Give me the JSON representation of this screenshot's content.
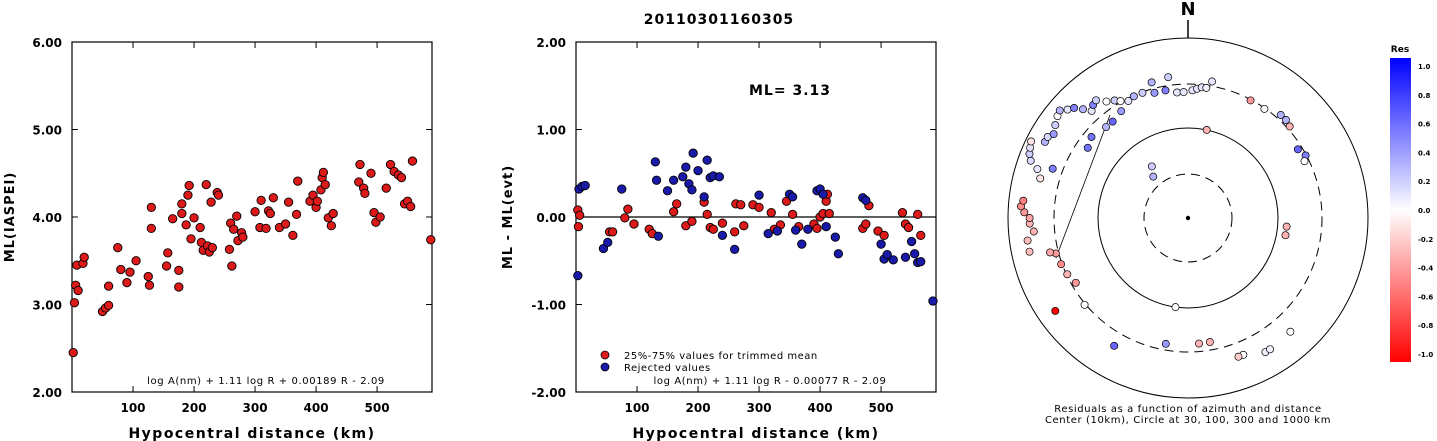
{
  "event_id": "20110301160305",
  "chart_data": [
    {
      "type": "scatter",
      "xlabel": "Hypocentral distance (km)",
      "ylabel": "ML(IASPEI)",
      "xlim": [
        0,
        590
      ],
      "ylim": [
        2.0,
        6.0
      ],
      "x_ticks": [
        "100",
        "200",
        "300",
        "400",
        "500"
      ],
      "y_ticks": [
        "2.00",
        "3.00",
        "4.00",
        "5.00",
        "6.00"
      ],
      "formula": "log A(nm) + 1.11 log R + 0.00189 R - 2.09",
      "marker_color": "#dd1a1a",
      "points": [
        [
          2,
          2.45
        ],
        [
          4,
          3.02
        ],
        [
          6,
          3.22
        ],
        [
          8,
          3.45
        ],
        [
          10,
          3.16
        ],
        [
          18,
          3.47
        ],
        [
          20,
          3.54
        ],
        [
          50,
          2.92
        ],
        [
          55,
          2.96
        ],
        [
          60,
          2.99
        ],
        [
          60,
          3.21
        ],
        [
          75,
          3.65
        ],
        [
          80,
          3.4
        ],
        [
          90,
          3.25
        ],
        [
          95,
          3.37
        ],
        [
          105,
          3.5
        ],
        [
          125,
          3.32
        ],
        [
          127,
          3.22
        ],
        [
          130,
          3.87
        ],
        [
          130,
          4.11
        ],
        [
          155,
          3.44
        ],
        [
          157,
          3.59
        ],
        [
          165,
          3.98
        ],
        [
          175,
          3.2
        ],
        [
          175,
          3.39
        ],
        [
          180,
          4.04
        ],
        [
          180,
          4.15
        ],
        [
          187,
          3.91
        ],
        [
          190,
          4.25
        ],
        [
          192,
          4.36
        ],
        [
          195,
          3.75
        ],
        [
          200,
          3.99
        ],
        [
          210,
          3.88
        ],
        [
          212,
          3.71
        ],
        [
          215,
          3.62
        ],
        [
          220,
          4.37
        ],
        [
          222,
          3.67
        ],
        [
          225,
          3.6
        ],
        [
          228,
          4.17
        ],
        [
          230,
          3.65
        ],
        [
          238,
          4.28
        ],
        [
          240,
          4.25
        ],
        [
          258,
          3.63
        ],
        [
          260,
          3.93
        ],
        [
          262,
          3.44
        ],
        [
          265,
          3.86
        ],
        [
          270,
          4.01
        ],
        [
          272,
          3.73
        ],
        [
          278,
          3.82
        ],
        [
          280,
          3.77
        ],
        [
          300,
          4.06
        ],
        [
          308,
          3.88
        ],
        [
          310,
          4.19
        ],
        [
          318,
          3.87
        ],
        [
          322,
          4.07
        ],
        [
          325,
          4.04
        ],
        [
          330,
          4.22
        ],
        [
          340,
          3.88
        ],
        [
          350,
          3.92
        ],
        [
          355,
          4.17
        ],
        [
          362,
          3.79
        ],
        [
          368,
          4.03
        ],
        [
          370,
          4.41
        ],
        [
          390,
          4.18
        ],
        [
          395,
          4.25
        ],
        [
          400,
          4.11
        ],
        [
          402,
          4.18
        ],
        [
          408,
          4.31
        ],
        [
          410,
          4.45
        ],
        [
          412,
          4.51
        ],
        [
          415,
          4.37
        ],
        [
          420,
          3.99
        ],
        [
          425,
          3.9
        ],
        [
          428,
          4.04
        ],
        [
          470,
          4.4
        ],
        [
          472,
          4.6
        ],
        [
          478,
          4.33
        ],
        [
          480,
          4.27
        ],
        [
          490,
          4.5
        ],
        [
          495,
          4.05
        ],
        [
          498,
          3.94
        ],
        [
          505,
          4.0
        ],
        [
          515,
          4.33
        ],
        [
          522,
          4.6
        ],
        [
          528,
          4.52
        ],
        [
          535,
          4.48
        ],
        [
          540,
          4.45
        ],
        [
          545,
          4.15
        ],
        [
          550,
          4.18
        ],
        [
          555,
          4.12
        ],
        [
          558,
          4.64
        ],
        [
          588,
          3.74
        ]
      ]
    },
    {
      "type": "scatter",
      "xlabel": "Hypocentral distance (km)",
      "ylabel": "ML - ML(evt)",
      "xlim": [
        0,
        590
      ],
      "ylim": [
        -2.0,
        2.0
      ],
      "x_ticks": [
        "100",
        "200",
        "300",
        "400",
        "500"
      ],
      "y_ticks": [
        "-2.00",
        "-1.00",
        "0.00",
        "1.00",
        "2.00"
      ],
      "zero_line": true,
      "annotation": "ML= 3.13",
      "formula": "log A(nm) + 1.11 log R - 0.00077 R - 2.09",
      "series": [
        {
          "name": "25%-75% values for trimmed mean",
          "color": "#dd1a1a",
          "points": [
            [
              3,
              0.08
            ],
            [
              4,
              -0.11
            ],
            [
              6,
              0.02
            ],
            [
              55,
              -0.17
            ],
            [
              60,
              -0.17
            ],
            [
              80,
              -0.01
            ],
            [
              85,
              0.09
            ],
            [
              95,
              -0.08
            ],
            [
              120,
              -0.14
            ],
            [
              125,
              -0.19
            ],
            [
              160,
              0.06
            ],
            [
              165,
              0.15
            ],
            [
              180,
              -0.1
            ],
            [
              190,
              -0.05
            ],
            [
              210,
              0.17
            ],
            [
              215,
              0.03
            ],
            [
              220,
              -0.12
            ],
            [
              225,
              -0.14
            ],
            [
              240,
              -0.07
            ],
            [
              260,
              -0.17
            ],
            [
              262,
              0.15
            ],
            [
              270,
              0.14
            ],
            [
              275,
              -0.1
            ],
            [
              290,
              0.14
            ],
            [
              300,
              0.11
            ],
            [
              320,
              0.05
            ],
            [
              325,
              -0.14
            ],
            [
              335,
              -0.09
            ],
            [
              345,
              0.18
            ],
            [
              355,
              0.03
            ],
            [
              365,
              -0.11
            ],
            [
              390,
              -0.08
            ],
            [
              395,
              -0.13
            ],
            [
              400,
              0.0
            ],
            [
              405,
              0.04
            ],
            [
              410,
              0.18
            ],
            [
              412,
              0.26
            ],
            [
              415,
              0.04
            ],
            [
              470,
              -0.13
            ],
            [
              475,
              -0.08
            ],
            [
              480,
              0.13
            ],
            [
              495,
              -0.16
            ],
            [
              505,
              -0.21
            ],
            [
              535,
              0.05
            ],
            [
              540,
              -0.08
            ],
            [
              545,
              -0.12
            ],
            [
              560,
              0.03
            ],
            [
              565,
              -0.21
            ]
          ]
        },
        {
          "name": "Rejected values",
          "color": "#1a1aaa",
          "points": [
            [
              3,
              -0.67
            ],
            [
              5,
              0.32
            ],
            [
              10,
              0.35
            ],
            [
              15,
              0.36
            ],
            [
              45,
              -0.36
            ],
            [
              52,
              -0.29
            ],
            [
              75,
              0.32
            ],
            [
              130,
              0.63
            ],
            [
              132,
              0.42
            ],
            [
              135,
              -0.22
            ],
            [
              150,
              0.3
            ],
            [
              160,
              0.42
            ],
            [
              175,
              0.46
            ],
            [
              180,
              0.57
            ],
            [
              185,
              0.38
            ],
            [
              190,
              0.31
            ],
            [
              192,
              0.73
            ],
            [
              200,
              0.53
            ],
            [
              210,
              0.23
            ],
            [
              215,
              0.65
            ],
            [
              220,
              0.45
            ],
            [
              225,
              0.47
            ],
            [
              235,
              0.46
            ],
            [
              240,
              -0.21
            ],
            [
              260,
              -0.37
            ],
            [
              300,
              0.25
            ],
            [
              315,
              -0.19
            ],
            [
              330,
              -0.16
            ],
            [
              350,
              0.26
            ],
            [
              355,
              0.23
            ],
            [
              360,
              -0.15
            ],
            [
              370,
              -0.31
            ],
            [
              380,
              -0.14
            ],
            [
              395,
              0.3
            ],
            [
              400,
              0.32
            ],
            [
              405,
              0.26
            ],
            [
              410,
              -0.11
            ],
            [
              425,
              -0.23
            ],
            [
              430,
              -0.42
            ],
            [
              470,
              0.22
            ],
            [
              475,
              0.19
            ],
            [
              500,
              -0.31
            ],
            [
              505,
              -0.48
            ],
            [
              510,
              -0.43
            ],
            [
              520,
              -0.49
            ],
            [
              540,
              -0.46
            ],
            [
              550,
              -0.28
            ],
            [
              555,
              -0.42
            ],
            [
              560,
              -0.52
            ],
            [
              565,
              -0.51
            ],
            [
              585,
              -0.96
            ]
          ]
        }
      ]
    },
    {
      "type": "polar_scatter",
      "north_label": "N",
      "caption_line1": "Residuals as a function of azimuth and distance",
      "caption_line2": "Center (10km), Circle at 30, 100, 300 and 1000 km",
      "colorbar": {
        "title": "Res",
        "labels": [
          "1.0",
          "0.8",
          "0.6",
          "0.4",
          "0.2",
          "0.0",
          "-0.2",
          "-0.4",
          "-0.6",
          "-0.8",
          "-1.0"
        ],
        "max_color": "#0000ff",
        "mid_color": "#ffffff",
        "min_color": "#ff0000"
      },
      "points": [
        [
          12,
          0.5,
          -0.3
        ],
        [
          188,
          0.5,
          0.02
        ],
        [
          320,
          0.3,
          0.3
        ],
        [
          325,
          0.35,
          0.2
        ],
        [
          95,
          0.55,
          -0.3
        ],
        [
          100,
          0.55,
          -0.3
        ],
        [
          170,
          0.7,
          -0.3
        ],
        [
          175,
          0.7,
          -0.3
        ],
        [
          230,
          0.75,
          0.0
        ],
        [
          210,
          0.82,
          0.6
        ],
        [
          150,
          0.86,
          0.05
        ],
        [
          148,
          0.86,
          0.05
        ],
        [
          138,
          0.85,
          0.0
        ],
        [
          250,
          0.75,
          -0.45
        ],
        [
          255,
          0.76,
          -0.4
        ],
        [
          256,
          0.79,
          -0.35
        ],
        [
          265,
          0.86,
          -0.3
        ],
        [
          268,
          0.88,
          -0.3
        ],
        [
          270,
          0.88,
          -0.35
        ],
        [
          272,
          0.91,
          -0.4
        ],
        [
          274,
          0.93,
          -0.45
        ],
        [
          276,
          0.92,
          -0.5
        ],
        [
          262,
          0.9,
          -0.25
        ],
        [
          258,
          0.9,
          -0.25
        ],
        [
          285,
          0.85,
          -0.1
        ],
        [
          288,
          0.88,
          0.1
        ],
        [
          290,
          0.93,
          0.15
        ],
        [
          292,
          0.95,
          0.2
        ],
        [
          294,
          0.96,
          0.1
        ],
        [
          296,
          0.97,
          -0.1
        ],
        [
          298,
          0.9,
          0.3
        ],
        [
          300,
          0.9,
          0.15
        ],
        [
          302,
          0.88,
          0.4
        ],
        [
          305,
          0.9,
          0.2
        ],
        [
          308,
          0.92,
          0.0
        ],
        [
          310,
          0.93,
          0.3
        ],
        [
          312,
          0.9,
          0.1
        ],
        [
          314,
          0.88,
          0.5
        ],
        [
          316,
          0.84,
          0.3
        ],
        [
          318,
          0.8,
          0.1
        ],
        [
          320,
          0.82,
          0.5
        ],
        [
          322,
          0.83,
          0.2
        ],
        [
          325,
          0.79,
          0.0
        ],
        [
          328,
          0.77,
          0.2
        ],
        [
          330,
          0.75,
          0.0
        ],
        [
          333,
          0.73,
          0.1
        ],
        [
          336,
          0.74,
          0.3
        ],
        [
          340,
          0.74,
          0.2
        ],
        [
          345,
          0.72,
          0.4
        ],
        [
          350,
          0.72,
          0.5
        ],
        [
          355,
          0.7,
          0.1
        ],
        [
          358,
          0.7,
          0.1
        ],
        [
          2,
          0.71,
          0.1
        ],
        [
          4,
          0.72,
          0.1
        ],
        [
          6,
          0.73,
          0.1
        ],
        [
          8,
          0.73,
          0.05
        ],
        [
          10,
          0.77,
          0.1
        ],
        [
          28,
          0.74,
          -0.4
        ],
        [
          35,
          0.74,
          0.0
        ],
        [
          42,
          0.77,
          0.3
        ],
        [
          45,
          0.77,
          0.3
        ],
        [
          48,
          0.76,
          -0.3
        ],
        [
          58,
          0.72,
          0.6
        ],
        [
          62,
          0.74,
          0.5
        ],
        [
          64,
          0.72,
          0.0
        ],
        [
          240,
          0.72,
          -0.4
        ],
        [
          245,
          0.74,
          -0.3
        ],
        [
          235,
          0.9,
          -1.0
        ],
        [
          290,
          0.8,
          0.5
        ],
        [
          305,
          0.68,
          0.55
        ],
        [
          310,
          0.7,
          0.55
        ],
        [
          318,
          0.68,
          0.3
        ],
        [
          322,
          0.68,
          0.6
        ],
        [
          328,
          0.7,
          0.4
        ],
        [
          345,
          0.78,
          0.3
        ],
        [
          352,
          0.79,
          0.2
        ],
        [
          190,
          0.71,
          0.4
        ],
        [
          158,
          0.82,
          0.0
        ],
        [
          160,
          0.82,
          -0.2
        ]
      ]
    }
  ]
}
